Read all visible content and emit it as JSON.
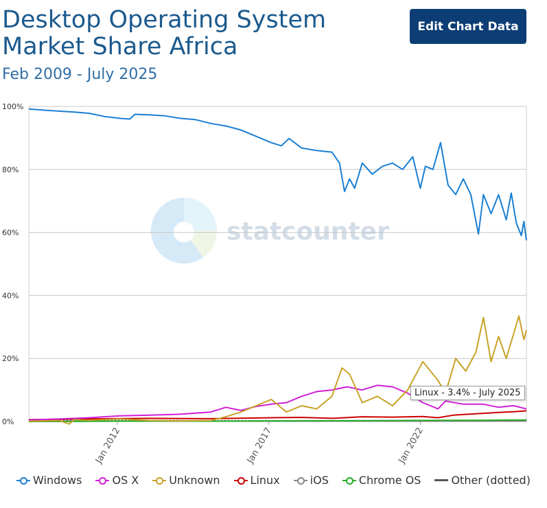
{
  "header": {
    "title": "Desktop Operating System Market Share Africa",
    "subtitle": "Feb 2009 - July 2025",
    "edit_button_label": "Edit Chart Data"
  },
  "watermark": {
    "text": "statcounter"
  },
  "tooltip": {
    "text": "Linux - 3.4% - July 2025"
  },
  "colors": {
    "Windows": "#1a7fd4",
    "OS X": "#d01ed6",
    "Unknown": "#c8a227",
    "Linux": "#cc0000",
    "iOS": "#888888",
    "Chrome OS": "#22aa22",
    "Other (dotted)": "#555555"
  },
  "chart_data": {
    "type": "line",
    "title": "Desktop Operating System Market Share Africa",
    "subtitle": "Feb 2009 - July 2025",
    "xlabel": "",
    "ylabel": "",
    "xlim": [
      "2009-02",
      "2025-07"
    ],
    "ylim": [
      0,
      100
    ],
    "y_ticks": [
      "0%",
      "20%",
      "40%",
      "60%",
      "80%",
      "100%"
    ],
    "x_ticks": [
      "Jan 2012",
      "Jan 2017",
      "Jan 2022"
    ],
    "grid": true,
    "legend_position": "bottom",
    "series": [
      {
        "name": "Windows",
        "points": [
          [
            "2009-02",
            99.2
          ],
          [
            "2009-08",
            98.8
          ],
          [
            "2010-02",
            98.5
          ],
          [
            "2010-08",
            98.2
          ],
          [
            "2011-02",
            97.8
          ],
          [
            "2011-08",
            96.8
          ],
          [
            "2012-02",
            96.2
          ],
          [
            "2012-06",
            96.0
          ],
          [
            "2012-08",
            97.5
          ],
          [
            "2013-02",
            97.3
          ],
          [
            "2013-08",
            97.0
          ],
          [
            "2014-02",
            96.2
          ],
          [
            "2014-08",
            95.8
          ],
          [
            "2015-02",
            94.6
          ],
          [
            "2015-08",
            93.8
          ],
          [
            "2016-02",
            92.5
          ],
          [
            "2016-08",
            90.5
          ],
          [
            "2017-02",
            88.5
          ],
          [
            "2017-06",
            87.5
          ],
          [
            "2017-09",
            89.8
          ],
          [
            "2018-02",
            86.8
          ],
          [
            "2018-08",
            86.0
          ],
          [
            "2019-02",
            85.5
          ],
          [
            "2019-05",
            82.0
          ],
          [
            "2019-07",
            73.0
          ],
          [
            "2019-09",
            77.0
          ],
          [
            "2019-11",
            74.0
          ],
          [
            "2020-02",
            82.0
          ],
          [
            "2020-06",
            78.5
          ],
          [
            "2020-10",
            81.0
          ],
          [
            "2021-02",
            82.0
          ],
          [
            "2021-06",
            80.0
          ],
          [
            "2021-10",
            84.0
          ],
          [
            "2022-01",
            74.0
          ],
          [
            "2022-03",
            81.0
          ],
          [
            "2022-06",
            80.0
          ],
          [
            "2022-09",
            88.5
          ],
          [
            "2022-12",
            75.0
          ],
          [
            "2023-03",
            72.0
          ],
          [
            "2023-06",
            77.0
          ],
          [
            "2023-09",
            72.0
          ],
          [
            "2023-12",
            59.5
          ],
          [
            "2024-02",
            72.0
          ],
          [
            "2024-05",
            66.0
          ],
          [
            "2024-08",
            72.0
          ],
          [
            "2024-11",
            64.0
          ],
          [
            "2025-01",
            72.5
          ],
          [
            "2025-03",
            63.0
          ],
          [
            "2025-05",
            59.0
          ],
          [
            "2025-06",
            63.5
          ],
          [
            "2025-07",
            57.5
          ]
        ]
      },
      {
        "name": "OS X",
        "points": [
          [
            "2009-02",
            0.5
          ],
          [
            "2010-02",
            0.8
          ],
          [
            "2011-02",
            1.2
          ],
          [
            "2012-02",
            1.8
          ],
          [
            "2013-02",
            2.0
          ],
          [
            "2014-02",
            2.3
          ],
          [
            "2015-02",
            3.0
          ],
          [
            "2015-08",
            4.5
          ],
          [
            "2016-02",
            3.5
          ],
          [
            "2016-08",
            4.8
          ],
          [
            "2017-02",
            5.5
          ],
          [
            "2017-08",
            6.0
          ],
          [
            "2018-02",
            8.0
          ],
          [
            "2018-08",
            9.5
          ],
          [
            "2019-02",
            10.0
          ],
          [
            "2019-08",
            11.0
          ],
          [
            "2020-02",
            10.0
          ],
          [
            "2020-08",
            11.5
          ],
          [
            "2021-02",
            11.0
          ],
          [
            "2021-08",
            9.0
          ],
          [
            "2022-02",
            6.0
          ],
          [
            "2022-08",
            4.0
          ],
          [
            "2022-11",
            6.5
          ],
          [
            "2023-06",
            5.5
          ],
          [
            "2024-02",
            5.5
          ],
          [
            "2024-08",
            4.5
          ],
          [
            "2025-02",
            5.0
          ],
          [
            "2025-07",
            4.0
          ]
        ]
      },
      {
        "name": "Unknown",
        "points": [
          [
            "2009-02",
            0.1
          ],
          [
            "2010-02",
            0.3
          ],
          [
            "2010-06",
            -0.8
          ],
          [
            "2010-08",
            0.6
          ],
          [
            "2011-02",
            0.4
          ],
          [
            "2012-02",
            0.8
          ],
          [
            "2013-02",
            0.3
          ],
          [
            "2014-02",
            0.2
          ],
          [
            "2015-02",
            0.3
          ],
          [
            "2015-08",
            1.5
          ],
          [
            "2016-02",
            3.0
          ],
          [
            "2016-08",
            5.0
          ],
          [
            "2017-02",
            7.0
          ],
          [
            "2017-08",
            3.0
          ],
          [
            "2018-02",
            5.0
          ],
          [
            "2018-08",
            4.0
          ],
          [
            "2019-02",
            8.0
          ],
          [
            "2019-06",
            17.0
          ],
          [
            "2019-09",
            15.0
          ],
          [
            "2020-02",
            6.0
          ],
          [
            "2020-08",
            8.0
          ],
          [
            "2021-02",
            5.0
          ],
          [
            "2021-08",
            10.0
          ],
          [
            "2022-02",
            19.0
          ],
          [
            "2022-08",
            13.0
          ],
          [
            "2022-11",
            9.0
          ],
          [
            "2023-03",
            20.0
          ],
          [
            "2023-07",
            16.0
          ],
          [
            "2023-11",
            22.0
          ],
          [
            "2024-02",
            33.0
          ],
          [
            "2024-05",
            19.0
          ],
          [
            "2024-08",
            27.0
          ],
          [
            "2024-11",
            20.0
          ],
          [
            "2025-02",
            28.0
          ],
          [
            "2025-04",
            33.5
          ],
          [
            "2025-06",
            26.0
          ],
          [
            "2025-07",
            29.0
          ]
        ]
      },
      {
        "name": "Linux",
        "points": [
          [
            "2009-02",
            0.6
          ],
          [
            "2011-02",
            0.8
          ],
          [
            "2013-02",
            1.0
          ],
          [
            "2015-02",
            0.9
          ],
          [
            "2017-02",
            1.2
          ],
          [
            "2018-02",
            1.3
          ],
          [
            "2019-02",
            1.0
          ],
          [
            "2020-02",
            1.5
          ],
          [
            "2021-02",
            1.4
          ],
          [
            "2022-02",
            1.6
          ],
          [
            "2022-08",
            1.2
          ],
          [
            "2023-02",
            2.0
          ],
          [
            "2023-08",
            2.3
          ],
          [
            "2024-02",
            2.6
          ],
          [
            "2024-08",
            2.9
          ],
          [
            "2025-02",
            3.1
          ],
          [
            "2025-07",
            3.4
          ]
        ]
      },
      {
        "name": "iOS",
        "points": [
          [
            "2009-02",
            0.0
          ],
          [
            "2012-02",
            0.1
          ],
          [
            "2015-02",
            0.1
          ],
          [
            "2018-02",
            0.1
          ],
          [
            "2021-02",
            0.1
          ],
          [
            "2024-02",
            0.1
          ],
          [
            "2025-07",
            0.1
          ]
        ]
      },
      {
        "name": "Chrome OS",
        "points": [
          [
            "2009-02",
            0.0
          ],
          [
            "2012-02",
            0.1
          ],
          [
            "2015-02",
            0.1
          ],
          [
            "2018-02",
            0.2
          ],
          [
            "2021-02",
            0.3
          ],
          [
            "2024-02",
            0.4
          ],
          [
            "2025-07",
            0.5
          ]
        ]
      },
      {
        "name": "Other (dotted)",
        "points": [
          [
            "2009-02",
            0.3
          ],
          [
            "2012-02",
            0.3
          ],
          [
            "2015-02",
            0.2
          ],
          [
            "2018-02",
            0.2
          ],
          [
            "2021-02",
            0.2
          ],
          [
            "2024-02",
            0.2
          ],
          [
            "2025-07",
            0.2
          ]
        ]
      }
    ]
  }
}
